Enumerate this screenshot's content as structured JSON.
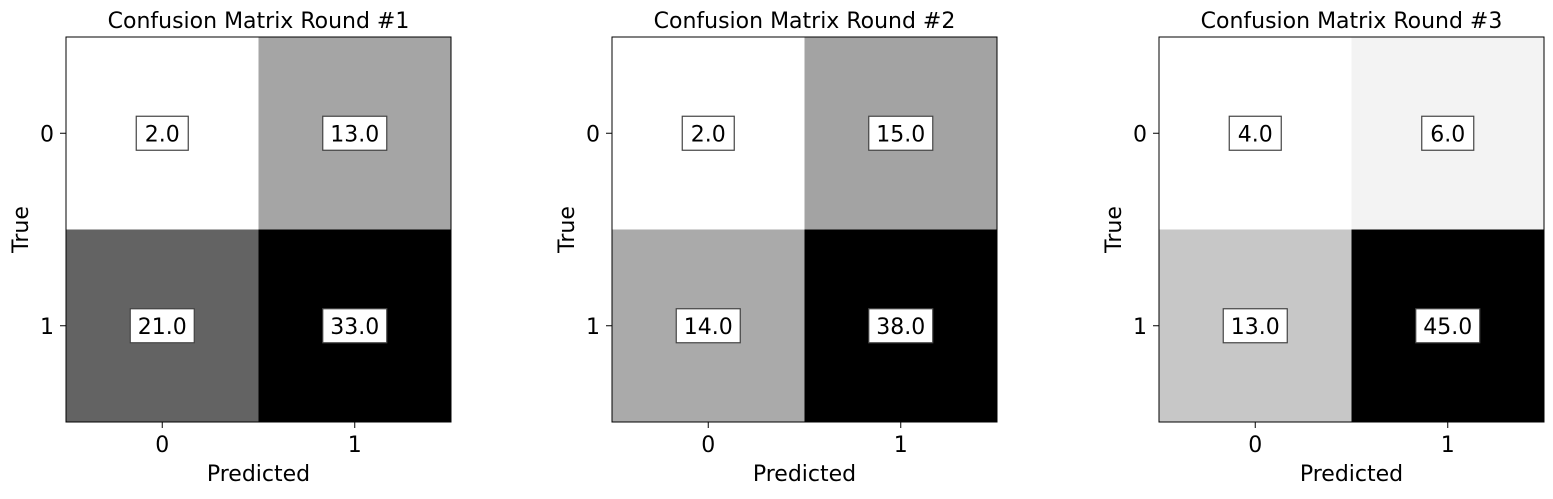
{
  "chart_data": [
    {
      "type": "heatmap",
      "title": "Confusion Matrix Round #1",
      "xlabel": "Predicted",
      "ylabel": "True",
      "x_ticks": [
        "0",
        "1"
      ],
      "y_ticks": [
        "0",
        "1"
      ],
      "values": [
        [
          2.0,
          13.0
        ],
        [
          21.0,
          33.0
        ]
      ],
      "value_labels": [
        [
          "2.0",
          "13.0"
        ],
        [
          "21.0",
          "33.0"
        ]
      ],
      "colormap": "greys",
      "grid": false
    },
    {
      "type": "heatmap",
      "title": "Confusion Matrix Round #2",
      "xlabel": "Predicted",
      "ylabel": "True",
      "x_ticks": [
        "0",
        "1"
      ],
      "y_ticks": [
        "0",
        "1"
      ],
      "values": [
        [
          2.0,
          15.0
        ],
        [
          14.0,
          38.0
        ]
      ],
      "value_labels": [
        [
          "2.0",
          "15.0"
        ],
        [
          "14.0",
          "38.0"
        ]
      ],
      "colormap": "greys",
      "grid": false
    },
    {
      "type": "heatmap",
      "title": "Confusion Matrix Round #3",
      "xlabel": "Predicted",
      "ylabel": "True",
      "x_ticks": [
        "0",
        "1"
      ],
      "y_ticks": [
        "0",
        "1"
      ],
      "values": [
        [
          4.0,
          6.0
        ],
        [
          13.0,
          45.0
        ]
      ],
      "value_labels": [
        [
          "4.0",
          "6.0"
        ],
        [
          "13.0",
          "45.0"
        ]
      ],
      "colormap": "greys",
      "grid": false
    }
  ]
}
